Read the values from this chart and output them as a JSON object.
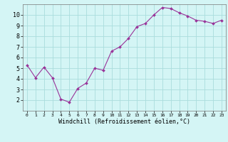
{
  "x": [
    0,
    1,
    2,
    3,
    4,
    5,
    6,
    7,
    8,
    9,
    10,
    11,
    12,
    13,
    14,
    15,
    16,
    17,
    18,
    19,
    20,
    21,
    22,
    23
  ],
  "y": [
    5.3,
    4.1,
    5.1,
    4.1,
    2.1,
    1.8,
    3.1,
    3.6,
    5.0,
    4.8,
    6.6,
    7.0,
    7.8,
    8.9,
    9.2,
    10.0,
    10.7,
    10.6,
    10.2,
    9.9,
    9.5,
    9.4,
    9.2,
    9.5
  ],
  "line_color": "#993399",
  "marker": "D",
  "marker_size": 2,
  "bg_color": "#d4f5f5",
  "grid_color": "#aadddd",
  "xlabel": "Windchill (Refroidissement éolien,°C)",
  "xlabel_fontsize": 6,
  "tick_fontsize": 6,
  "ylim": [
    1,
    11
  ],
  "xlim": [
    -0.5,
    23.5
  ],
  "yticks": [
    2,
    3,
    4,
    5,
    6,
    7,
    8,
    9,
    10
  ],
  "xticks": [
    0,
    1,
    2,
    3,
    4,
    5,
    6,
    7,
    8,
    9,
    10,
    11,
    12,
    13,
    14,
    15,
    16,
    17,
    18,
    19,
    20,
    21,
    22,
    23
  ],
  "xtick_labels": [
    "0",
    "1",
    "2",
    "3",
    "4",
    "5",
    "6",
    "7",
    "8",
    "9",
    "10",
    "11",
    "12",
    "13",
    "14",
    "15",
    "16",
    "17",
    "18",
    "19",
    "20",
    "21",
    "22",
    "23"
  ]
}
